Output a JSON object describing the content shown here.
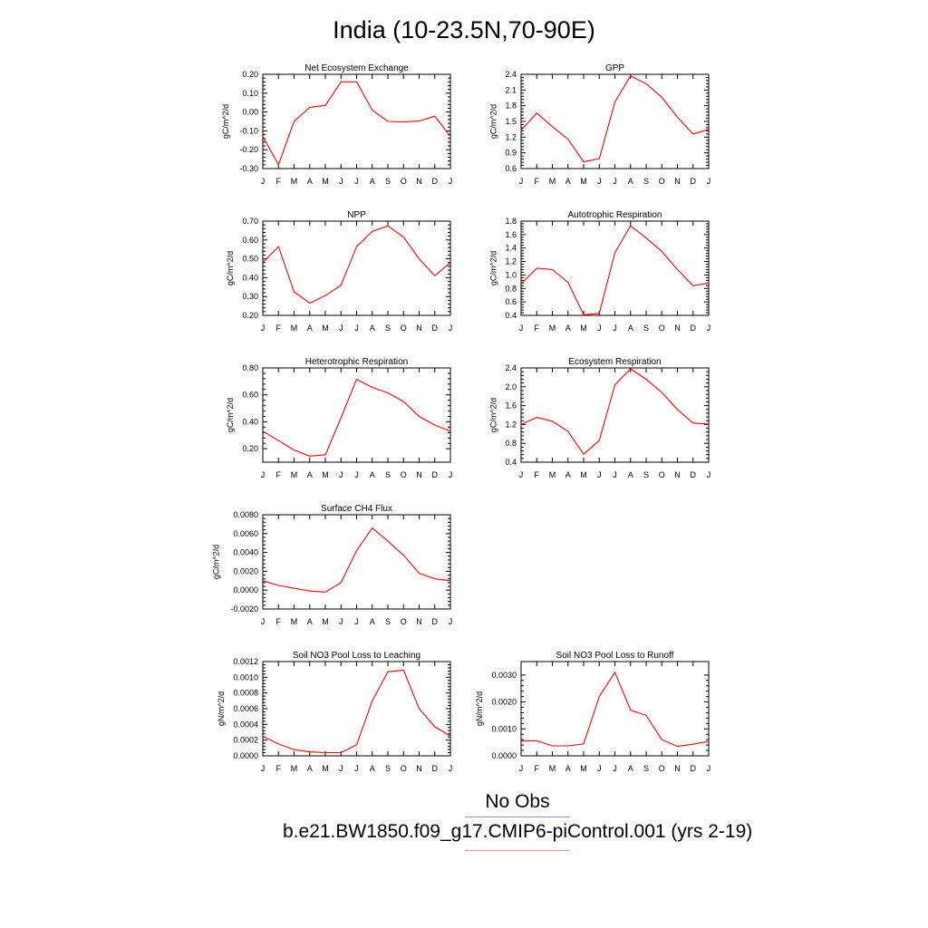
{
  "figure": {
    "title": "India (10-23.5N,70-90E)",
    "legend": [
      {
        "label": "No Obs",
        "color": "#8b8bf0"
      },
      {
        "label": "b.e21.BW1850.f09_g17.CMIP6-piControl.001 (yrs 2-19)",
        "color": "#f08b8b"
      }
    ],
    "line_color": "#ff0000"
  },
  "chart_data": [
    {
      "type": "line",
      "title": "Net Ecosystem Exchange",
      "ylabel": "gC/m^2/d",
      "categories": [
        "J",
        "F",
        "M",
        "A",
        "M",
        "J",
        "J",
        "A",
        "S",
        "O",
        "N",
        "D",
        "J"
      ],
      "ylim": [
        -0.3,
        0.2
      ],
      "yticks": [
        "0.20",
        "0.10",
        "0.00",
        "-0.10",
        "-0.20",
        "-0.30"
      ],
      "series": [
        {
          "values": [
            -0.13,
            -0.28,
            -0.05,
            0.025,
            0.035,
            0.16,
            0.16,
            0.01,
            -0.05,
            -0.052,
            -0.048,
            -0.022,
            -0.13
          ]
        }
      ]
    },
    {
      "type": "line",
      "title": "GPP",
      "ylabel": "gC/m^2/d",
      "categories": [
        "J",
        "F",
        "M",
        "A",
        "M",
        "J",
        "J",
        "A",
        "S",
        "O",
        "N",
        "D",
        "J"
      ],
      "ylim": [
        0.6,
        2.4
      ],
      "yticks": [
        "2.4",
        "2.1",
        "1.8",
        "1.5",
        "1.2",
        "0.9",
        "0.6"
      ],
      "series": [
        {
          "values": [
            1.33,
            1.66,
            1.4,
            1.16,
            0.73,
            0.79,
            1.87,
            2.37,
            2.22,
            1.96,
            1.58,
            1.26,
            1.35
          ]
        }
      ]
    },
    {
      "type": "line",
      "title": "NPP",
      "ylabel": "gC/m^2/d",
      "categories": [
        "J",
        "F",
        "M",
        "A",
        "M",
        "J",
        "J",
        "A",
        "S",
        "O",
        "N",
        "D",
        "J"
      ],
      "ylim": [
        0.2,
        0.7
      ],
      "yticks": [
        "0.70",
        "0.60",
        "0.50",
        "0.40",
        "0.30",
        "0.20"
      ],
      "series": [
        {
          "values": [
            0.48,
            0.565,
            0.325,
            0.265,
            0.305,
            0.36,
            0.565,
            0.645,
            0.675,
            0.615,
            0.5,
            0.41,
            0.48
          ]
        }
      ]
    },
    {
      "type": "line",
      "title": "Autotrophic Respiration",
      "ylabel": "gC/m^2/d",
      "categories": [
        "J",
        "F",
        "M",
        "A",
        "M",
        "J",
        "J",
        "A",
        "S",
        "O",
        "N",
        "D",
        "J"
      ],
      "ylim": [
        0.4,
        1.8
      ],
      "yticks": [
        "1.8",
        "1.6",
        "1.4",
        "1.2",
        "1.0",
        "0.8",
        "0.6",
        "0.4"
      ],
      "series": [
        {
          "values": [
            0.87,
            1.1,
            1.08,
            0.89,
            0.41,
            0.43,
            1.33,
            1.73,
            1.55,
            1.35,
            1.08,
            0.84,
            0.88
          ]
        }
      ]
    },
    {
      "type": "line",
      "title": "Heterotrophic Respiration",
      "ylabel": "gC/m^2/d",
      "categories": [
        "J",
        "F",
        "M",
        "A",
        "M",
        "J",
        "J",
        "A",
        "S",
        "O",
        "N",
        "D",
        "J"
      ],
      "ylim": [
        0.1,
        0.8
      ],
      "yticks": [
        "0.80",
        "0.60",
        "0.40",
        "0.20"
      ],
      "series": [
        {
          "values": [
            0.33,
            0.26,
            0.19,
            0.145,
            0.155,
            0.43,
            0.715,
            0.655,
            0.615,
            0.55,
            0.44,
            0.375,
            0.33
          ]
        }
      ]
    },
    {
      "type": "line",
      "title": "Ecosystem Respiration",
      "ylabel": "gC/m^2/d",
      "categories": [
        "J",
        "F",
        "M",
        "A",
        "M",
        "J",
        "J",
        "A",
        "S",
        "O",
        "N",
        "D",
        "J"
      ],
      "ylim": [
        0.4,
        2.4
      ],
      "yticks": [
        "2.4",
        "2.0",
        "1.6",
        "1.2",
        "0.8",
        "0.4"
      ],
      "series": [
        {
          "values": [
            1.2,
            1.35,
            1.27,
            1.05,
            0.57,
            0.86,
            2.04,
            2.38,
            2.16,
            1.88,
            1.52,
            1.23,
            1.21
          ]
        }
      ]
    },
    {
      "type": "line",
      "title": "Surface CH4 Flux",
      "ylabel": "gC/m^2/d",
      "categories": [
        "J",
        "F",
        "M",
        "A",
        "M",
        "J",
        "J",
        "A",
        "S",
        "O",
        "N",
        "D",
        "J"
      ],
      "ylim": [
        -0.002,
        0.008
      ],
      "yticks": [
        "0.0080",
        "0.0060",
        "0.0040",
        "0.0020",
        "0.0000",
        "-0.0020"
      ],
      "series": [
        {
          "values": [
            0.001,
            0.0005,
            0.0002,
            -0.0001,
            -0.0002,
            0.0008,
            0.0042,
            0.0066,
            0.0052,
            0.0037,
            0.0018,
            0.0012,
            0.001
          ]
        }
      ]
    },
    {
      "type": "line",
      "title": "Soil NO3 Pool Loss to Leaching",
      "ylabel": "gN/m^2/d",
      "categories": [
        "J",
        "F",
        "M",
        "A",
        "M",
        "J",
        "J",
        "A",
        "S",
        "O",
        "N",
        "D",
        "J"
      ],
      "ylim": [
        0.0,
        0.0012
      ],
      "yticks": [
        "0.0012",
        "0.0010",
        "0.0008",
        "0.0006",
        "0.0004",
        "0.0002",
        "0.0000"
      ],
      "series": [
        {
          "values": [
            0.00025,
            0.00015,
            8e-05,
            5e-05,
            4e-05,
            4e-05,
            0.00014,
            0.0007,
            0.00107,
            0.00109,
            0.0006,
            0.00037,
            0.00025
          ]
        }
      ]
    },
    {
      "type": "line",
      "title": "Soil NO3 Pool Loss to Runoff",
      "ylabel": "gN/m^2/d",
      "categories": [
        "J",
        "F",
        "M",
        "A",
        "M",
        "J",
        "J",
        "A",
        "S",
        "O",
        "N",
        "D",
        "J"
      ],
      "ylim": [
        0.0,
        0.0035
      ],
      "yticks": [
        "0.0030",
        "0.0020",
        "0.0010",
        "0.0000"
      ],
      "ytick_values": [
        0.003,
        0.002,
        0.001,
        0.0
      ],
      "series": [
        {
          "values": [
            0.00055,
            0.00056,
            0.00037,
            0.00037,
            0.00044,
            0.0022,
            0.0031,
            0.0017,
            0.0015,
            0.0006,
            0.00035,
            0.00043,
            0.00054
          ]
        }
      ]
    }
  ]
}
